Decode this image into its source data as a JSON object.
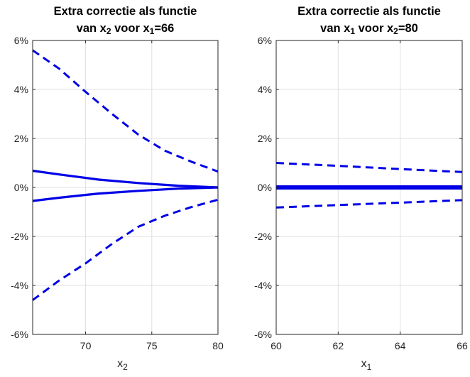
{
  "colors": {
    "series": "#0000e6",
    "axis": "#262626",
    "grid": "#e0e0e0"
  },
  "chart_data": [
    {
      "type": "line",
      "title_line1": "Extra correctie als functie",
      "title_line2_parts": [
        "van x",
        "2",
        " voor x",
        "1",
        "=66"
      ],
      "xlabel_main": "x",
      "xlabel_sub": "2",
      "xlim": [
        66,
        80
      ],
      "ylim": [
        -6,
        6
      ],
      "xticks": [
        70,
        75,
        80
      ],
      "yticks": [
        -6,
        -4,
        -2,
        0,
        2,
        4,
        6
      ],
      "ytick_labels": [
        "-6%",
        "-4%",
        "-2%",
        "0%",
        "2%",
        "4%",
        "6%"
      ],
      "grid": true,
      "series": [
        {
          "style": "solid",
          "x": [
            66,
            68,
            71,
            74,
            77,
            80
          ],
          "values": [
            0.68,
            0.53,
            0.32,
            0.18,
            0.07,
            0.0
          ]
        },
        {
          "style": "solid",
          "x": [
            66,
            68,
            71,
            74,
            77,
            80
          ],
          "values": [
            -0.55,
            -0.42,
            -0.25,
            -0.14,
            -0.05,
            0.0
          ]
        },
        {
          "style": "dashed",
          "x": [
            66,
            68,
            70,
            72,
            74,
            76,
            78,
            80
          ],
          "values": [
            5.6,
            4.85,
            3.9,
            3.0,
            2.15,
            1.5,
            1.05,
            0.65
          ]
        },
        {
          "style": "dashed",
          "x": [
            66,
            68,
            70,
            72,
            74,
            76,
            78,
            80
          ],
          "values": [
            -4.6,
            -3.8,
            -3.1,
            -2.3,
            -1.6,
            -1.15,
            -0.8,
            -0.5
          ]
        }
      ]
    },
    {
      "type": "line",
      "title_line1": "Extra correctie als functie",
      "title_line2_parts": [
        "van x",
        "1",
        " voor x",
        "2",
        "=80"
      ],
      "xlabel_main": "x",
      "xlabel_sub": "1",
      "xlim": [
        60,
        66
      ],
      "ylim": [
        -6,
        6
      ],
      "xticks": [
        60,
        62,
        64,
        66
      ],
      "yticks": [
        -6,
        -4,
        -2,
        0,
        2,
        4,
        6
      ],
      "ytick_labels": [
        "-6%",
        "-4%",
        "-2%",
        "0%",
        "2%",
        "4%",
        "6%"
      ],
      "grid": true,
      "series": [
        {
          "style": "thick",
          "x": [
            60,
            66
          ],
          "values": [
            0.0,
            0.0
          ]
        },
        {
          "style": "dashed",
          "x": [
            60,
            62,
            64,
            66
          ],
          "values": [
            1.0,
            0.88,
            0.75,
            0.63
          ]
        },
        {
          "style": "dashed",
          "x": [
            60,
            62,
            64,
            66
          ],
          "values": [
            -0.82,
            -0.72,
            -0.62,
            -0.52
          ]
        }
      ]
    }
  ]
}
